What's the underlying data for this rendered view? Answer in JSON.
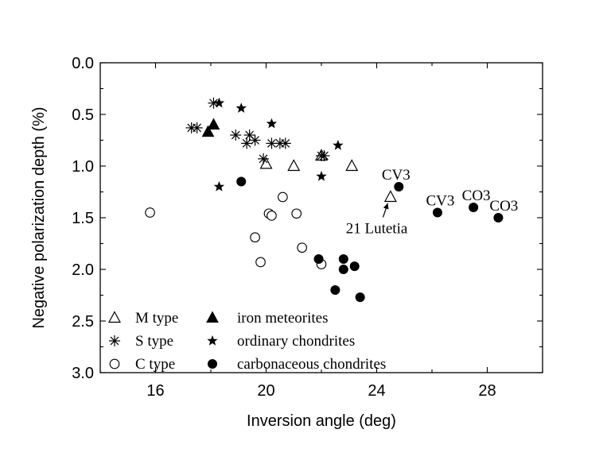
{
  "chart_data": {
    "type": "scatter",
    "xlabel": "Inversion angle (deg)",
    "ylabel": "Negative polarization depth (%)",
    "xlim": [
      14,
      30
    ],
    "ylim": [
      0,
      3
    ],
    "y_inverted": true,
    "x_ticks": [
      16,
      20,
      24,
      28
    ],
    "y_ticks": [
      0.0,
      0.5,
      1.0,
      1.5,
      2.0,
      2.5,
      3.0
    ],
    "x_tick_labels": [
      "16",
      "20",
      "24",
      "28"
    ],
    "y_tick_labels": [
      "0.0",
      "0.5",
      "1.0",
      "1.5",
      "2.0",
      "2.5",
      "3.0"
    ],
    "grid": false,
    "legend_position": "bottom-left",
    "series": [
      {
        "name": "M type",
        "marker": "open-triangle",
        "points": [
          [
            20.0,
            0.98
          ],
          [
            21.0,
            1.0
          ],
          [
            23.1,
            1.0
          ],
          [
            22.0,
            0.9
          ],
          [
            24.5,
            1.3
          ]
        ]
      },
      {
        "name": "iron meteorites",
        "marker": "filled-triangle",
        "points": [
          [
            17.9,
            0.67
          ],
          [
            18.1,
            0.6
          ]
        ]
      },
      {
        "name": "S type",
        "marker": "asterisk",
        "points": [
          [
            17.3,
            0.63
          ],
          [
            17.5,
            0.63
          ],
          [
            18.1,
            0.39
          ],
          [
            18.9,
            0.7
          ],
          [
            19.3,
            0.78
          ],
          [
            19.4,
            0.7
          ],
          [
            19.6,
            0.75
          ],
          [
            19.9,
            0.93
          ],
          [
            20.2,
            0.78
          ],
          [
            20.5,
            0.78
          ],
          [
            20.7,
            0.78
          ],
          [
            22.0,
            0.9
          ],
          [
            22.1,
            0.9
          ]
        ]
      },
      {
        "name": "ordinary chondrites",
        "marker": "filled-star",
        "points": [
          [
            18.3,
            0.39
          ],
          [
            19.1,
            0.44
          ],
          [
            20.2,
            0.59
          ],
          [
            22.6,
            0.8
          ],
          [
            18.3,
            1.2
          ],
          [
            22.0,
            1.1
          ]
        ]
      },
      {
        "name": "C type",
        "marker": "open-circle",
        "points": [
          [
            15.8,
            1.45
          ],
          [
            19.6,
            1.69
          ],
          [
            19.8,
            1.93
          ],
          [
            20.1,
            1.46
          ],
          [
            20.2,
            1.48
          ],
          [
            20.6,
            1.3
          ],
          [
            21.1,
            1.46
          ],
          [
            21.3,
            1.79
          ],
          [
            22.0,
            1.95
          ]
        ]
      },
      {
        "name": "carbonaceous chondrites",
        "marker": "filled-circle",
        "points": [
          [
            19.1,
            1.15
          ],
          [
            24.8,
            1.2
          ],
          [
            26.2,
            1.45
          ],
          [
            27.5,
            1.4
          ],
          [
            28.4,
            1.5
          ],
          [
            21.9,
            1.9
          ],
          [
            22.8,
            1.9
          ],
          [
            22.8,
            2.0
          ],
          [
            23.2,
            1.97
          ],
          [
            22.5,
            2.2
          ],
          [
            23.4,
            2.27
          ]
        ]
      }
    ],
    "annotations": [
      {
        "text": "CV3",
        "x": 24.7,
        "y": 1.13
      },
      {
        "text": "CV3",
        "x": 26.3,
        "y": 1.38
      },
      {
        "text": "CO3",
        "x": 27.6,
        "y": 1.33
      },
      {
        "text": "CO3",
        "x": 28.6,
        "y": 1.43
      },
      {
        "text": "21 Lutetia",
        "x": 24.0,
        "y": 1.65,
        "arrow_to": [
          24.4,
          1.36
        ]
      }
    ]
  }
}
